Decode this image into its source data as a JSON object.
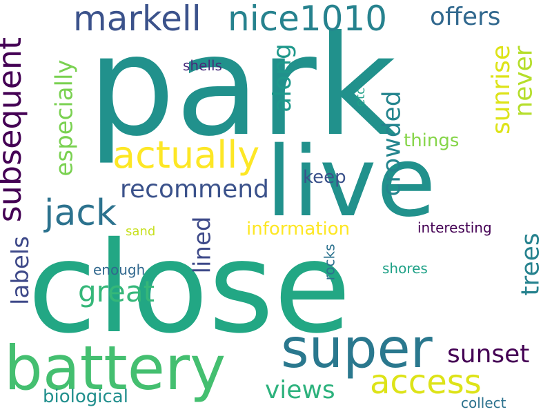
{
  "words": [
    {
      "text": "park",
      "color": "#21918c"
    },
    {
      "text": "close",
      "color": "#22a784"
    },
    {
      "text": "live",
      "color": "#21918c"
    },
    {
      "text": "battery",
      "color": "#44bf70"
    },
    {
      "text": "super",
      "color": "#2a788e"
    },
    {
      "text": "nice1010",
      "color": "#26828e"
    },
    {
      "text": "markell",
      "color": "#3b528b"
    },
    {
      "text": "actually",
      "color": "#fde725"
    },
    {
      "text": "subsequent",
      "color": "#440154"
    },
    {
      "text": "access",
      "color": "#dde318"
    },
    {
      "text": "jack",
      "color": "#2c728e"
    },
    {
      "text": "recommend",
      "color": "#3b528b"
    },
    {
      "text": "offers",
      "color": "#31688e"
    },
    {
      "text": "great",
      "color": "#35b779"
    },
    {
      "text": "especially",
      "color": "#7ad151"
    },
    {
      "text": "crowded",
      "color": "#25858e"
    },
    {
      "text": "sunrise",
      "color": "#dde318"
    },
    {
      "text": "never",
      "color": "#b5de2b"
    },
    {
      "text": "along",
      "color": "#1f988b"
    },
    {
      "text": "sunset",
      "color": "#440154"
    },
    {
      "text": "views",
      "color": "#2db27d"
    },
    {
      "text": "trees",
      "color": "#26828e"
    },
    {
      "text": "lined",
      "color": "#3e4a89"
    },
    {
      "text": "labels",
      "color": "#3e4989"
    },
    {
      "text": "biological",
      "color": "#218f8d"
    },
    {
      "text": "information",
      "color": "#fde725"
    },
    {
      "text": "things",
      "color": "#86d549"
    },
    {
      "text": "keep",
      "color": "#3b528b"
    },
    {
      "text": "interesting",
      "color": "#440154"
    },
    {
      "text": "shells",
      "color": "#472c7a"
    },
    {
      "text": "enough",
      "color": "#31688e"
    },
    {
      "text": "shores",
      "color": "#1fa187"
    },
    {
      "text": "rocks",
      "color": "#2c728e"
    },
    {
      "text": "collect",
      "color": "#2c728e"
    },
    {
      "text": "sand",
      "color": "#c8e020"
    },
    {
      "text": "etc",
      "color": "#1f9f88"
    }
  ]
}
